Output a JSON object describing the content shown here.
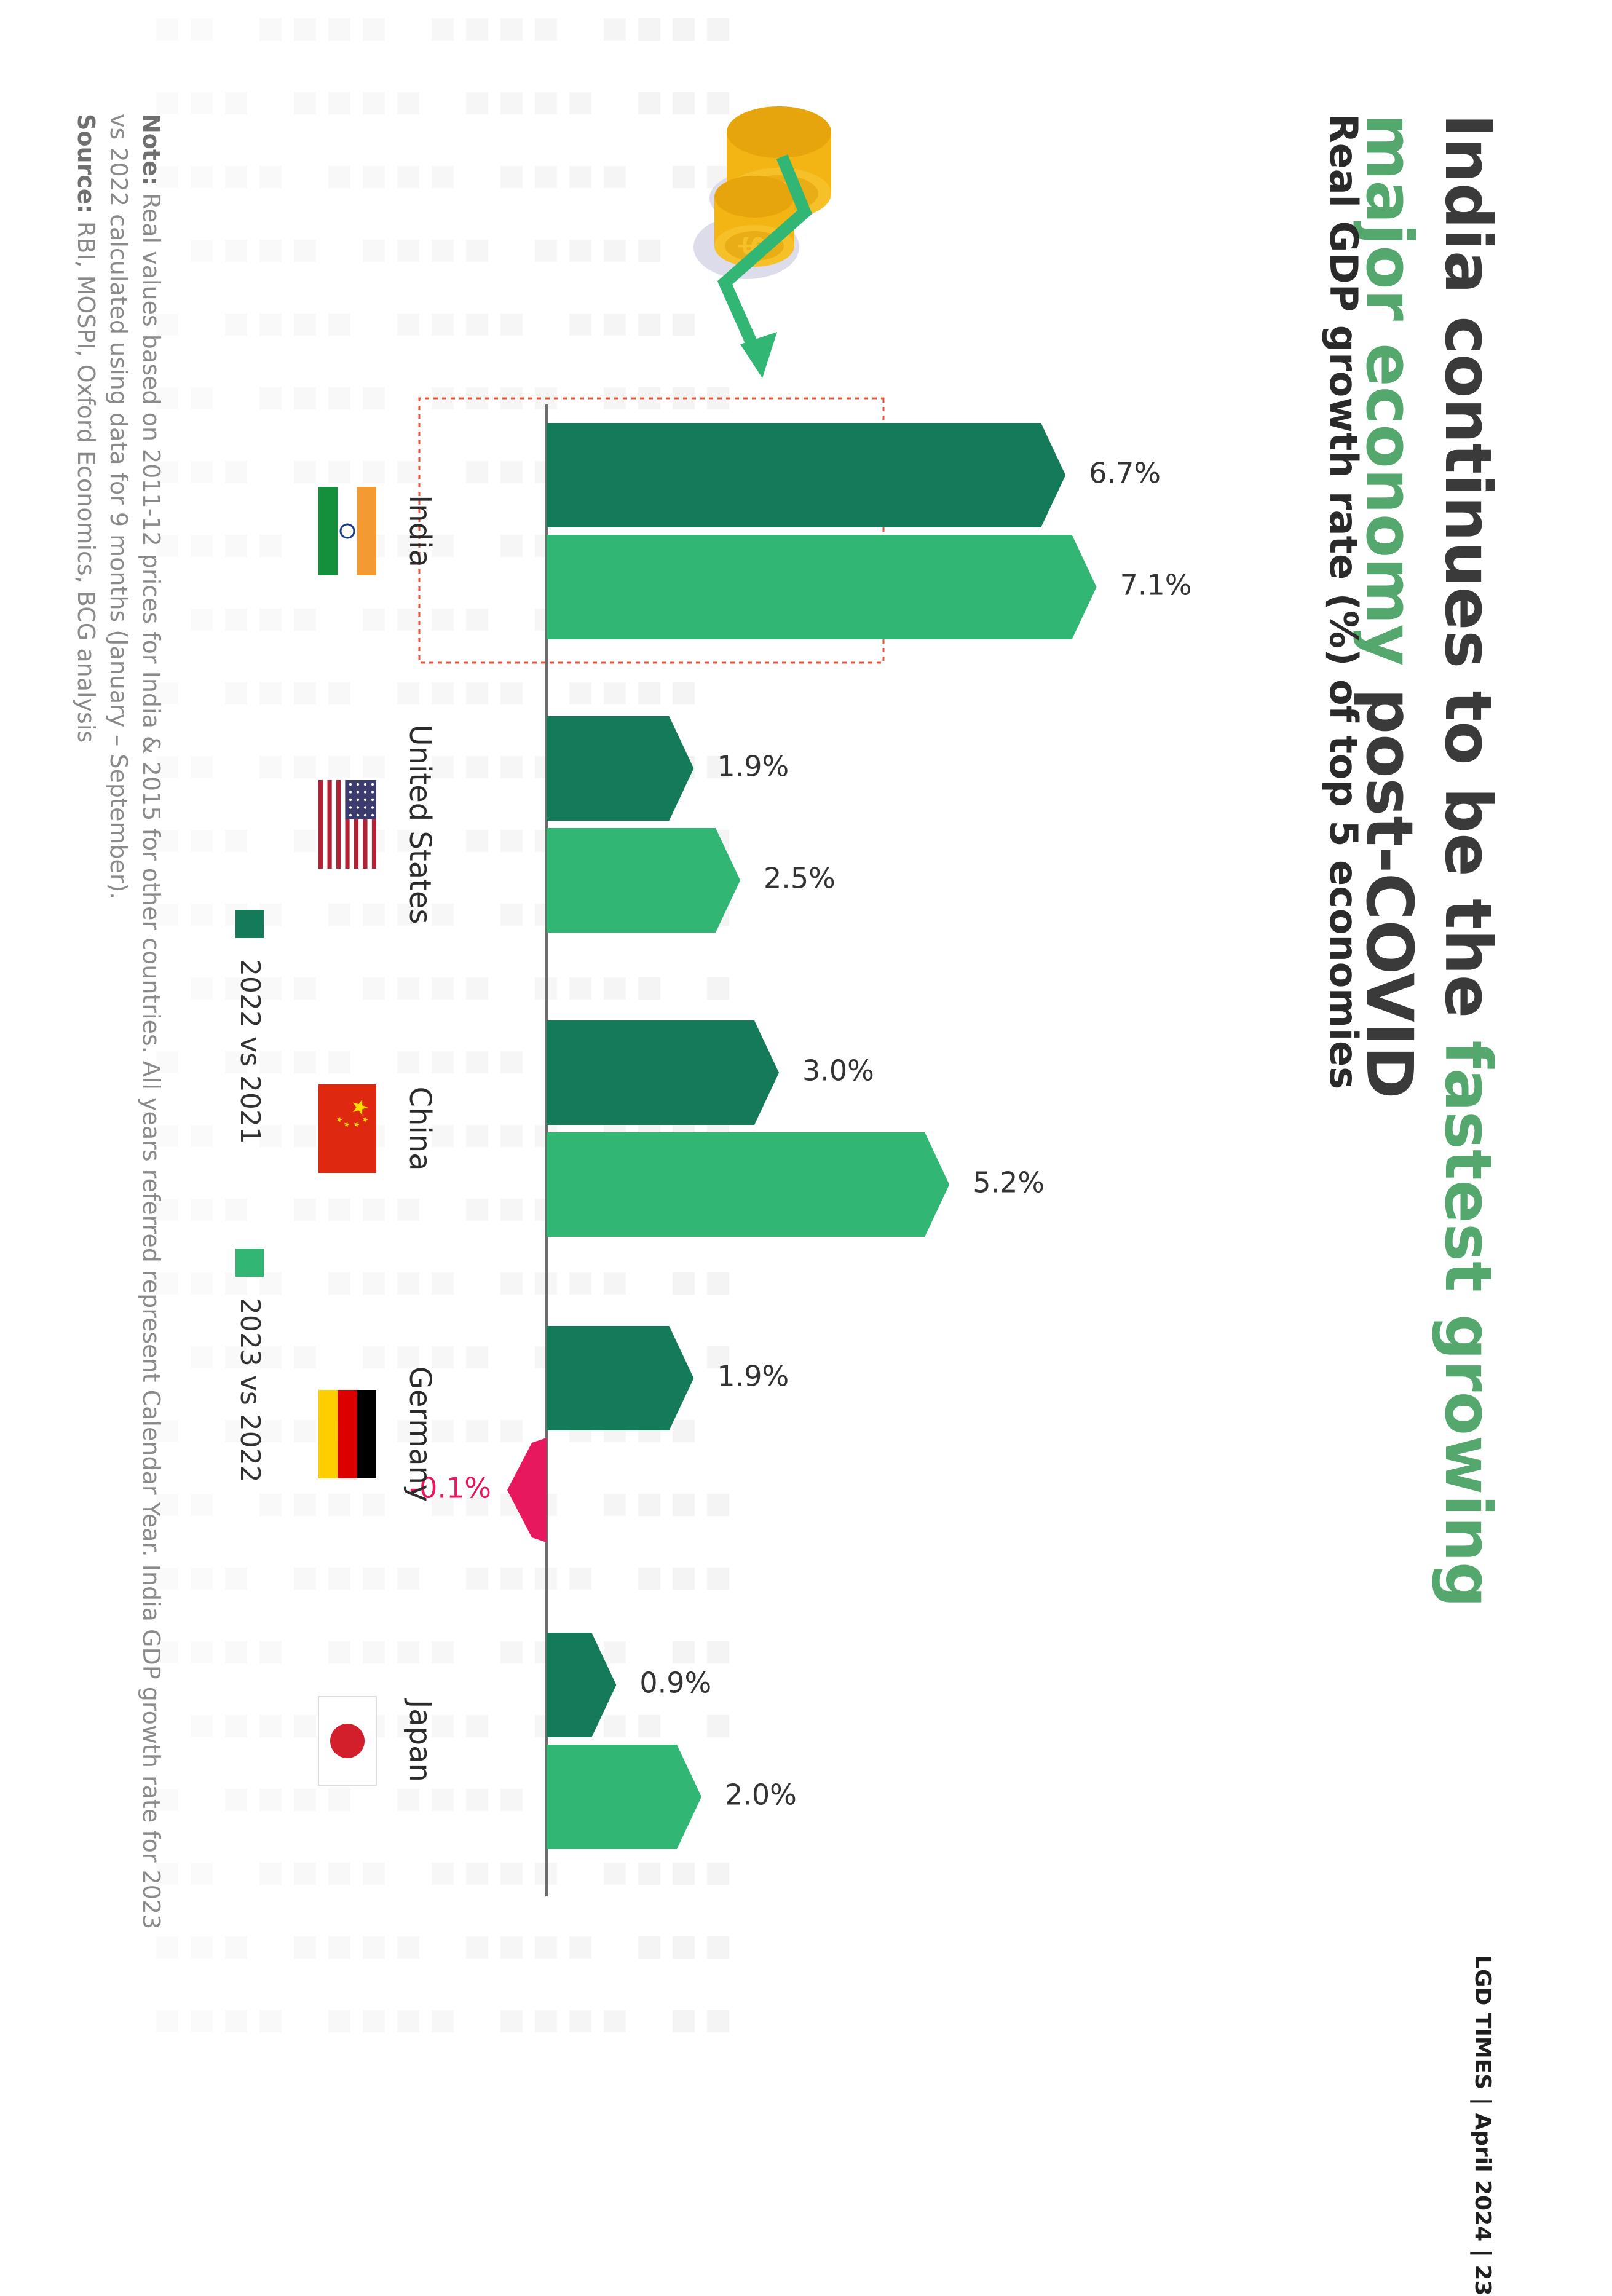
{
  "title": {
    "part1": "India continues to be the ",
    "highlight": "fastest growing major economy",
    "part2": " post-COVID"
  },
  "subtitle": "Real GDP growth rate (%) of top 5 economies",
  "colors": {
    "series_2022": "#157a5a",
    "series_2023": "#32b674",
    "negative": "#e8185e",
    "highlight_box": "#e0573a",
    "arrow": "#32b674"
  },
  "chart_data": {
    "type": "bar",
    "title": "Real GDP growth rate (%) of top 5 economies",
    "categories": [
      "India",
      "United States",
      "China",
      "Germany",
      "Japan"
    ],
    "series": [
      {
        "name": "2022 vs 2021",
        "values": [
          6.7,
          1.9,
          3.0,
          1.9,
          0.9
        ],
        "labels": [
          "6.7%",
          "1.9%",
          "3.0%",
          "1.9%",
          "0.9%"
        ]
      },
      {
        "name": "2023 vs 2022",
        "values": [
          7.1,
          2.5,
          5.2,
          -0.1,
          2.0
        ],
        "labels": [
          "7.1%",
          "2.5%",
          "5.2%",
          "-0.1%",
          "2.0%"
        ]
      }
    ],
    "highlighted_category": "India",
    "xlabel": "",
    "ylabel": "",
    "ylim": [
      -0.5,
      7.5
    ],
    "legend_position": "bottom"
  },
  "legend": {
    "items": [
      {
        "label": "2022 vs 2021",
        "color": "#157a5a"
      },
      {
        "label": "2023 vs 2022",
        "color": "#32b674"
      }
    ]
  },
  "flags": [
    "india-flag-icon",
    "us-flag-icon",
    "china-flag-icon",
    "germany-flag-icon",
    "japan-flag-icon"
  ],
  "footnote": {
    "note_label": "Note:",
    "note_text": " Real values based on 2011-12 prices for India & 2015 for other countries. All years referred represent Calendar Year. India GDP growth rate for 2023 vs 2022 calculated using data for 9 months (January – September).",
    "source_label": "Source:",
    "source_text": " RBI, MOSPI, Oxford Economics, BCG analysis"
  },
  "footer": "LGD TIMES | April 2024 | 23"
}
